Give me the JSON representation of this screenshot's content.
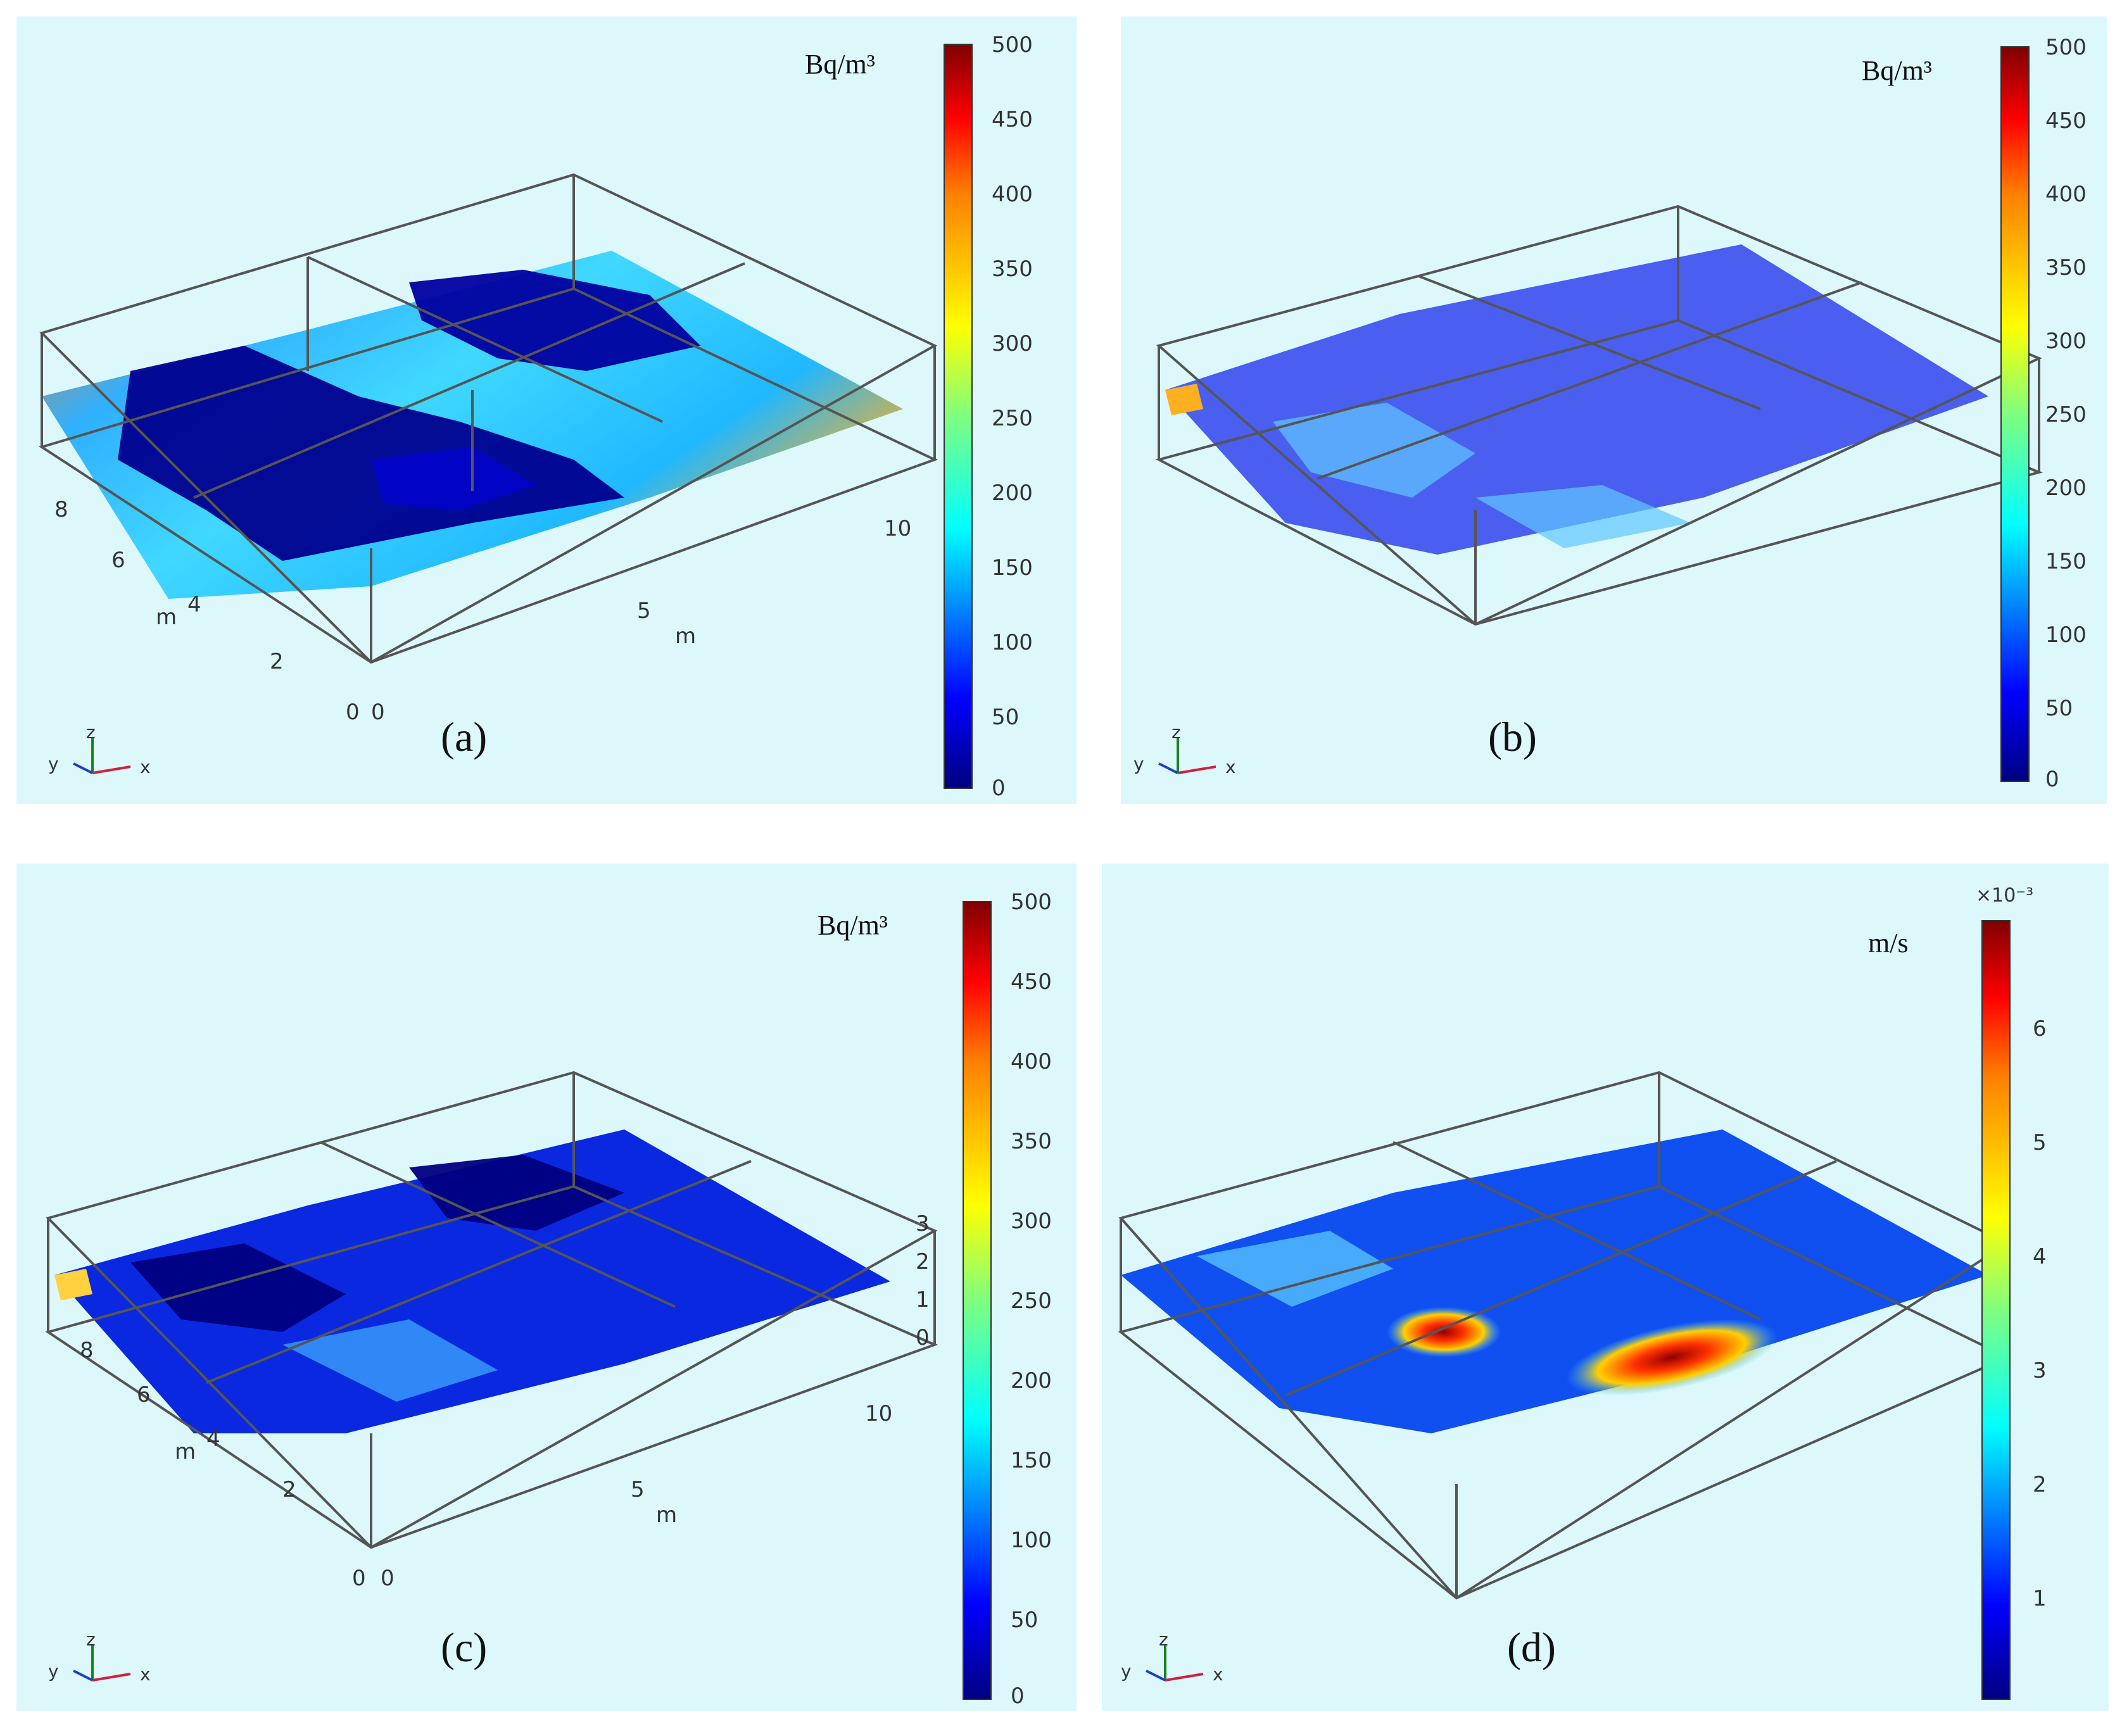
{
  "colors": {
    "panel_bg": "#dcf8fb",
    "colormap": [
      "#00007f",
      "#0000ff",
      "#007fff",
      "#00ffff",
      "#7fff7f",
      "#ffff00",
      "#ff7f00",
      "#ff0000",
      "#7f0000"
    ],
    "frame": "#555555"
  },
  "chart_data": [
    {
      "type": "heatmap",
      "panel_label": "(a)",
      "colorbar_unit": "Bq/m³",
      "colorbar_range": [
        0,
        500
      ],
      "colorbar_ticks": [
        "500",
        "450",
        "400",
        "350",
        "300",
        "250",
        "200",
        "150",
        "100",
        "50",
        "0"
      ],
      "axis_x_ticks": [
        "0",
        "5",
        "10"
      ],
      "axis_x_label": "m",
      "axis_y_ticks": [
        "0",
        "2",
        "4",
        "6",
        "8"
      ],
      "axis_y_label": "m",
      "triad": [
        "y",
        "z",
        "x"
      ]
    },
    {
      "type": "heatmap",
      "panel_label": "(b)",
      "colorbar_unit": "Bq/m³",
      "colorbar_range": [
        0,
        500
      ],
      "colorbar_ticks": [
        "500",
        "450",
        "400",
        "350",
        "300",
        "250",
        "200",
        "150",
        "100",
        "50",
        "0"
      ],
      "triad": [
        "y",
        "z",
        "x"
      ]
    },
    {
      "type": "heatmap",
      "panel_label": "(c)",
      "colorbar_unit": "Bq/m³",
      "colorbar_range": [
        0,
        500
      ],
      "colorbar_ticks": [
        "500",
        "450",
        "400",
        "350",
        "300",
        "250",
        "200",
        "150",
        "100",
        "50",
        "0"
      ],
      "axis_x_ticks": [
        "0",
        "5",
        "10"
      ],
      "axis_x_label": "m",
      "axis_y_ticks": [
        "0",
        "2",
        "4",
        "6",
        "8"
      ],
      "axis_y_label": "m",
      "axis_z_ticks": [
        "0",
        "1",
        "2",
        "3"
      ],
      "triad": [
        "y",
        "z",
        "x"
      ]
    },
    {
      "type": "heatmap",
      "panel_label": "(d)",
      "colorbar_unit": "m/s",
      "colorbar_exponent": "×10⁻³",
      "colorbar_range": [
        0,
        6.8
      ],
      "colorbar_ticks": [
        "6",
        "5",
        "4",
        "3",
        "2",
        "1"
      ],
      "triad": [
        "y",
        "z",
        "x"
      ]
    }
  ]
}
